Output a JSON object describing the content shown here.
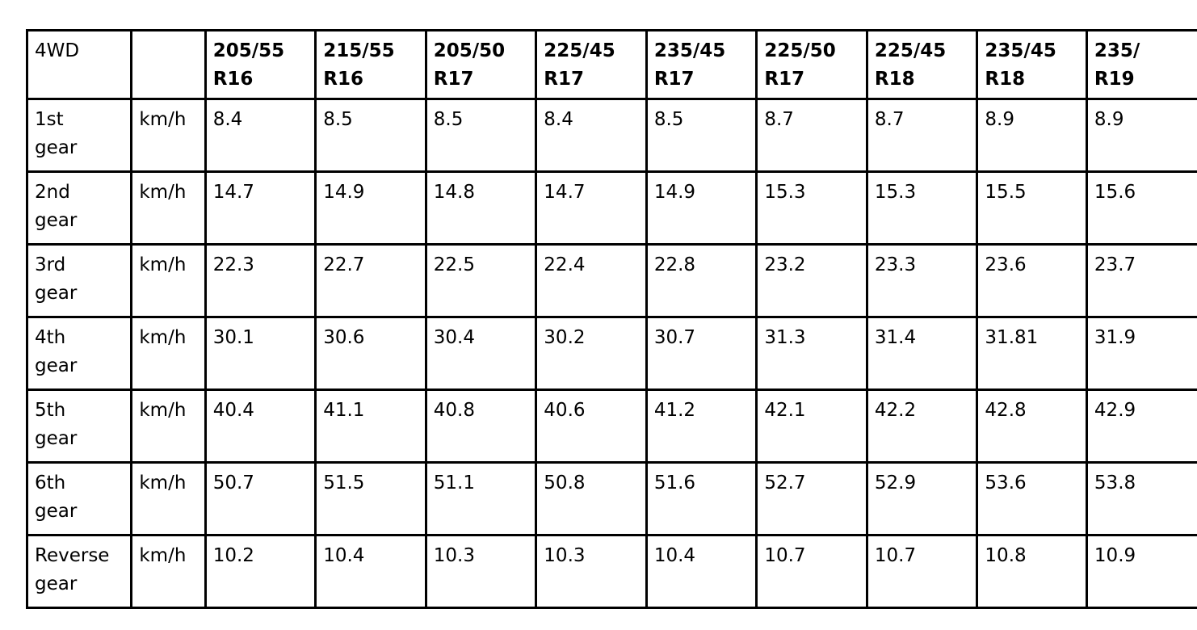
{
  "table": {
    "corner_label": "4WD",
    "unit_header": "",
    "tire_sizes": [
      [
        "205/55",
        "R16"
      ],
      [
        "215/55",
        "R16"
      ],
      [
        "205/50",
        "R17"
      ],
      [
        "225/45",
        "R17"
      ],
      [
        "235/45",
        "R17"
      ],
      [
        "225/50",
        "R17"
      ],
      [
        "225/45",
        "R18"
      ],
      [
        "235/45",
        "R18"
      ],
      [
        "235/",
        "R19"
      ]
    ],
    "rows": [
      {
        "gear": [
          "1st",
          "gear"
        ],
        "unit": "km/h",
        "values": [
          "8.4",
          "8.5",
          "8.5",
          "8.4",
          "8.5",
          "8.7",
          "8.7",
          "8.9",
          "8.9"
        ]
      },
      {
        "gear": [
          "2nd",
          "gear"
        ],
        "unit": "km/h",
        "values": [
          "14.7",
          "14.9",
          "14.8",
          "14.7",
          "14.9",
          "15.3",
          "15.3",
          "15.5",
          "15.6"
        ]
      },
      {
        "gear": [
          "3rd",
          "gear"
        ],
        "unit": "km/h",
        "values": [
          "22.3",
          "22.7",
          "22.5",
          "22.4",
          "22.8",
          "23.2",
          "23.3",
          "23.6",
          "23.7"
        ]
      },
      {
        "gear": [
          "4th",
          "gear"
        ],
        "unit": "km/h",
        "values": [
          "30.1",
          "30.6",
          "30.4",
          "30.2",
          "30.7",
          "31.3",
          "31.4",
          "31.81",
          "31.9"
        ]
      },
      {
        "gear": [
          "5th",
          "gear"
        ],
        "unit": "km/h",
        "values": [
          "40.4",
          "41.1",
          "40.8",
          "40.6",
          "41.2",
          "42.1",
          "42.2",
          "42.8",
          "42.9"
        ]
      },
      {
        "gear": [
          "6th",
          "gear"
        ],
        "unit": "km/h",
        "values": [
          "50.7",
          "51.5",
          "51.1",
          "50.8",
          "51.6",
          "52.7",
          "52.9",
          "53.6",
          "53.8"
        ]
      },
      {
        "gear": [
          "Reverse",
          "gear"
        ],
        "unit": "km/h",
        "values": [
          "10.2",
          "10.4",
          "10.3",
          "10.3",
          "10.4",
          "10.7",
          "10.7",
          "10.8",
          "10.9"
        ]
      }
    ]
  }
}
